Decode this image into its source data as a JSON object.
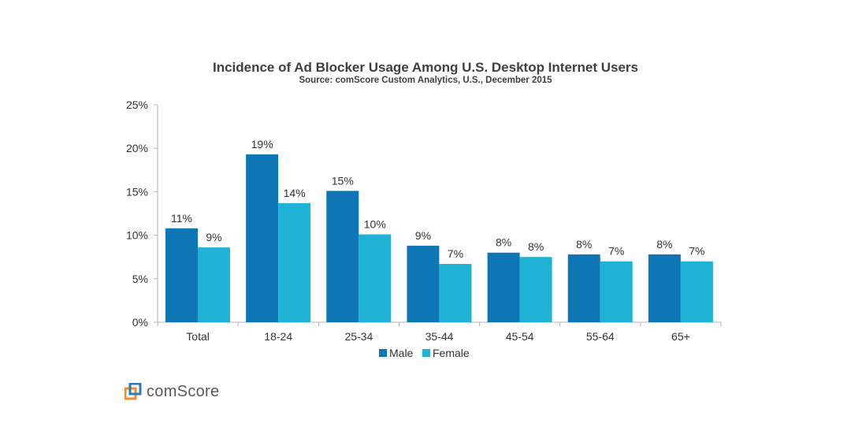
{
  "colors": {
    "male": "#0e76b5",
    "female": "#1eb2d4",
    "axis": "#b3b3b3",
    "logo_orange": "#f28c28",
    "logo_blue": "#2e7ab8"
  },
  "logo": {
    "text": "comScore",
    "icon": "comscore-logo-icon"
  },
  "chart_data": {
    "type": "bar",
    "title": "Incidence of Ad Blocker Usage Among U.S. Desktop Internet Users",
    "subtitle": "Source: comScore Custom Analytics, U.S., December 2015",
    "xlabel": "",
    "ylabel": "",
    "ylim": [
      0,
      25
    ],
    "yticks": [
      "0%",
      "5%",
      "10%",
      "15%",
      "20%",
      "25%"
    ],
    "ytick_values": [
      0,
      5,
      10,
      15,
      20,
      25
    ],
    "categories": [
      "Total",
      "18-24",
      "25-34",
      "35-44",
      "45-54",
      "55-64",
      "65+"
    ],
    "series": [
      {
        "name": "Male",
        "values": [
          10.8,
          19.3,
          15.1,
          8.8,
          8.0,
          7.8,
          7.8
        ],
        "labels": [
          "11%",
          "19%",
          "15%",
          "9%",
          "8%",
          "8%",
          "8%"
        ]
      },
      {
        "name": "Female",
        "values": [
          8.6,
          13.7,
          10.1,
          6.7,
          7.5,
          7.0,
          7.0
        ],
        "labels": [
          "9%",
          "14%",
          "10%",
          "7%",
          "8%",
          "7%",
          "7%"
        ]
      }
    ],
    "legend_position": "bottom-center",
    "grid": false
  }
}
